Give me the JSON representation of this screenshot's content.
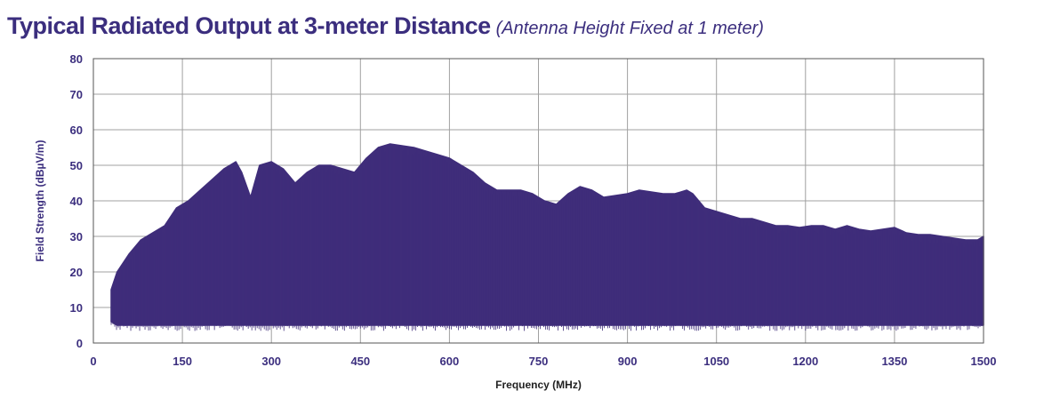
{
  "chart_data": {
    "type": "area",
    "title": "Typical Radiated Output at 3-meter Distance",
    "subtitle": "(Antenna Height Fixed at 1 meter)",
    "xlabel": "Frequency (MHz)",
    "ylabel": "Field Strength (dBµV/m)",
    "xlim": [
      0,
      1500
    ],
    "ylim": [
      0,
      80
    ],
    "xticks": [
      "0",
      "150",
      "300",
      "450",
      "600",
      "750",
      "900",
      "1050",
      "1200",
      "1350",
      "1500"
    ],
    "yticks": [
      "0",
      "10",
      "20",
      "30",
      "40",
      "50",
      "60",
      "70",
      "80"
    ],
    "grid": true,
    "series_color": "#3f2d7a",
    "grid_color": "#a0a0a0",
    "text_color": "#3b2e7e",
    "series": [
      {
        "x": [
          30,
          40,
          60,
          80,
          100,
          120,
          140,
          160,
          180,
          200,
          220,
          240,
          250,
          265,
          280,
          300,
          320,
          340,
          360,
          380,
          400,
          420,
          440,
          460,
          480,
          500,
          520,
          540,
          560,
          580,
          600,
          620,
          640,
          660,
          680,
          700,
          720,
          740,
          760,
          780,
          800,
          820,
          840,
          860,
          880,
          900,
          920,
          940,
          960,
          980,
          1000,
          1010,
          1030,
          1050,
          1070,
          1090,
          1110,
          1130,
          1150,
          1170,
          1190,
          1210,
          1230,
          1250,
          1270,
          1290,
          1310,
          1330,
          1350,
          1370,
          1390,
          1410,
          1430,
          1450,
          1470,
          1490,
          1500
        ],
        "peak": [
          15,
          20,
          25,
          29,
          31,
          33,
          38,
          40,
          43,
          46,
          49,
          51,
          48,
          41,
          50,
          51,
          49,
          45,
          48,
          50,
          50,
          49,
          48,
          52,
          55,
          56,
          55.5,
          55,
          54,
          53,
          52,
          50,
          48,
          45,
          43,
          43,
          43,
          42,
          40,
          39,
          42,
          44,
          43,
          41,
          41.5,
          42,
          43,
          42.5,
          42,
          42,
          43,
          42,
          38,
          37,
          36,
          35,
          35,
          34,
          33,
          33,
          32.5,
          33,
          33,
          32,
          33,
          32,
          31.5,
          32,
          32.5,
          31,
          30.5,
          30.5,
          30,
          29.5,
          29,
          29,
          30
        ],
        "floor": [
          6,
          5,
          5,
          5,
          5,
          5,
          5,
          5,
          5,
          5,
          5,
          5,
          5,
          5,
          5,
          5,
          5,
          5,
          5,
          5,
          5,
          5,
          5,
          5,
          5,
          5,
          5,
          5,
          5,
          5,
          5,
          5,
          5,
          5,
          5,
          5,
          5,
          5,
          5,
          5,
          5,
          5,
          5,
          5,
          5,
          5,
          5,
          5,
          5,
          5,
          5,
          5,
          5,
          5,
          5,
          5,
          5,
          5,
          5,
          5,
          5,
          5,
          5,
          5,
          5,
          5,
          5,
          5,
          5,
          5,
          5,
          5,
          5,
          5,
          5,
          5,
          5
        ]
      }
    ]
  }
}
